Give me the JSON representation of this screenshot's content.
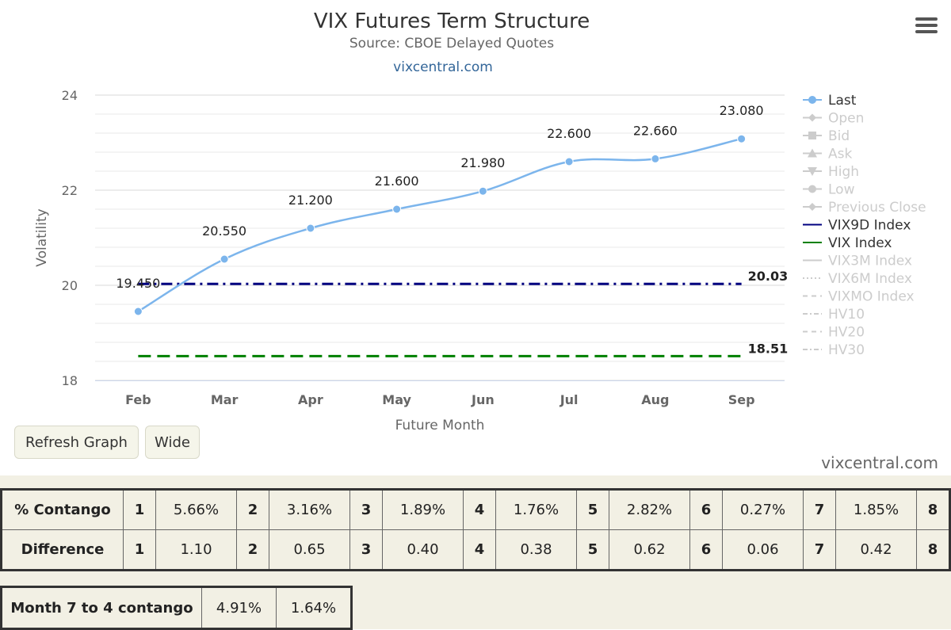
{
  "chart": {
    "title": "VIX Futures Term Structure",
    "subtitle": "Source: CBOE Delayed Quotes",
    "link": "vixcentral.com",
    "watermark": "vixcentral.com"
  },
  "chart_data": {
    "type": "line",
    "title": "VIX Futures Term Structure",
    "subtitle": "Source: CBOE Delayed Quotes",
    "xlabel": "Future Month",
    "ylabel": "Volatility",
    "categories": [
      "Feb",
      "Mar",
      "Apr",
      "May",
      "Jun",
      "Jul",
      "Aug",
      "Sep"
    ],
    "ylim": [
      18,
      24
    ],
    "yticks": [
      18,
      20,
      22,
      24
    ],
    "grid": true,
    "legend_position": "right",
    "series": [
      {
        "name": "Last",
        "values": [
          19.45,
          20.55,
          21.2,
          21.6,
          21.98,
          22.6,
          22.66,
          23.08
        ],
        "labels": [
          "19.450",
          "20.550",
          "21.200",
          "21.600",
          "21.980",
          "22.600",
          "22.660",
          "23.080"
        ],
        "color": "#7cb5ec",
        "style": "smooth-markers"
      },
      {
        "name": "VIX9D Index",
        "value": 20.03,
        "label": "20.03",
        "color": "#000080",
        "style": "dash-dot"
      },
      {
        "name": "VIX Index",
        "value": 18.51,
        "label": "18.51",
        "color": "#008000",
        "style": "dashed"
      }
    ],
    "legend": [
      {
        "name": "Last",
        "active": true,
        "symbol": "circle-line",
        "color": "#7cb5ec"
      },
      {
        "name": "Open",
        "active": false,
        "symbol": "diamond-line",
        "color": "#cccccc"
      },
      {
        "name": "Bid",
        "active": false,
        "symbol": "square-line",
        "color": "#cccccc"
      },
      {
        "name": "Ask",
        "active": false,
        "symbol": "triangle-line",
        "color": "#cccccc"
      },
      {
        "name": "High",
        "active": false,
        "symbol": "triangle-down-line",
        "color": "#cccccc"
      },
      {
        "name": "Low",
        "active": false,
        "symbol": "circle-line",
        "color": "#cccccc"
      },
      {
        "name": "Previous Close",
        "active": false,
        "symbol": "diamond-line",
        "color": "#cccccc"
      },
      {
        "name": "VIX9D Index",
        "active": true,
        "symbol": "line",
        "color": "#000080"
      },
      {
        "name": "VIX Index",
        "active": true,
        "symbol": "line",
        "color": "#008000"
      },
      {
        "name": "VIX3M Index",
        "active": false,
        "symbol": "line",
        "color": "#cccccc"
      },
      {
        "name": "VIX6M Index",
        "active": false,
        "symbol": "dotted",
        "color": "#cccccc"
      },
      {
        "name": "VIXMO Index",
        "active": false,
        "symbol": "dashed",
        "color": "#cccccc"
      },
      {
        "name": "HV10",
        "active": false,
        "symbol": "dash-dot",
        "color": "#cccccc"
      },
      {
        "name": "HV20",
        "active": false,
        "symbol": "dashed",
        "color": "#cccccc"
      },
      {
        "name": "HV30",
        "active": false,
        "symbol": "dash-dot",
        "color": "#cccccc"
      }
    ]
  },
  "buttons": {
    "refresh": "Refresh Graph",
    "wide": "Wide"
  },
  "contango_table": {
    "rows": [
      {
        "label": "% Contango",
        "cells": [
          {
            "num": "1",
            "val": "5.66%"
          },
          {
            "num": "2",
            "val": "3.16%"
          },
          {
            "num": "3",
            "val": "1.89%"
          },
          {
            "num": "4",
            "val": "1.76%"
          },
          {
            "num": "5",
            "val": "2.82%"
          },
          {
            "num": "6",
            "val": "0.27%"
          },
          {
            "num": "7",
            "val": "1.85%"
          }
        ],
        "last": "8"
      },
      {
        "label": "Difference",
        "cells": [
          {
            "num": "1",
            "val": "1.10"
          },
          {
            "num": "2",
            "val": "0.65"
          },
          {
            "num": "3",
            "val": "0.40"
          },
          {
            "num": "4",
            "val": "0.38"
          },
          {
            "num": "5",
            "val": "0.62"
          },
          {
            "num": "6",
            "val": "0.06"
          },
          {
            "num": "7",
            "val": "0.42"
          }
        ],
        "last": "8"
      }
    ]
  },
  "month_table": {
    "label": "Month 7 to 4 contango",
    "values": [
      "4.91%",
      "1.64%"
    ]
  }
}
